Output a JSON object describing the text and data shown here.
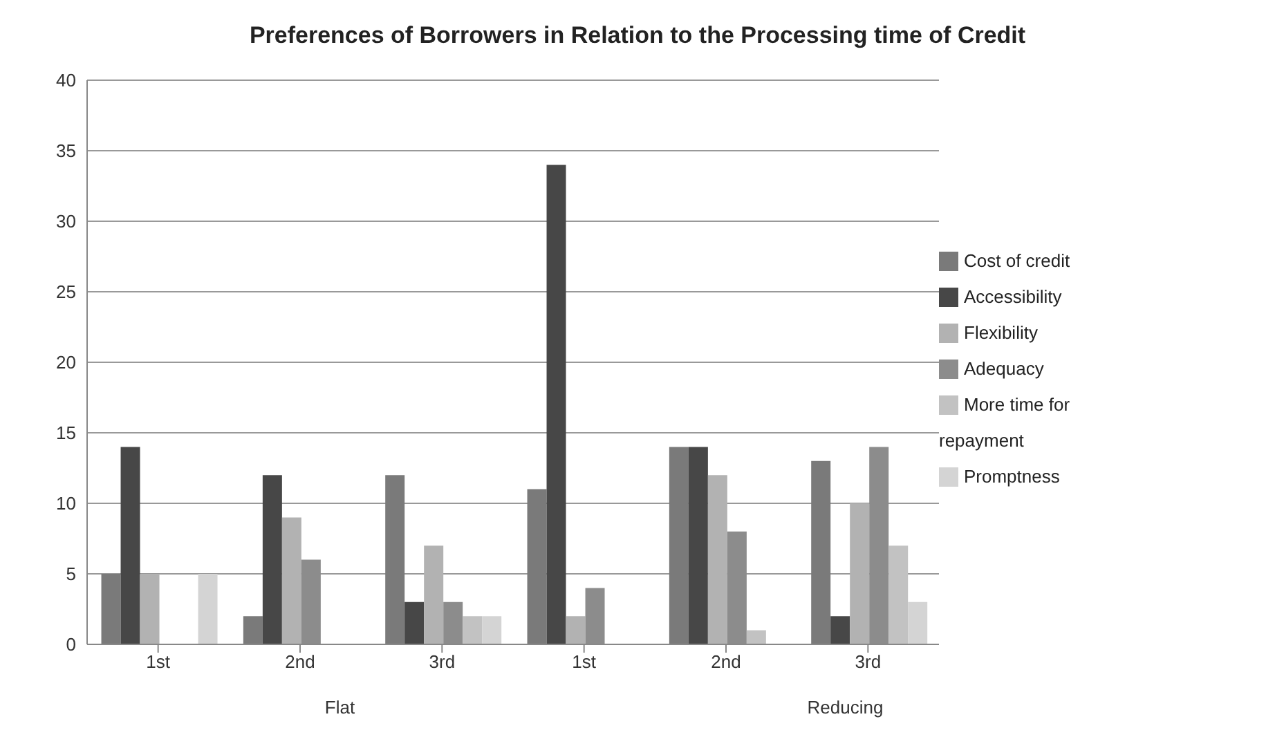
{
  "chart_data": {
    "type": "bar",
    "title": "Preferences of Borrowers in Relation to the Processing time of Credit",
    "categories": [
      "1st",
      "2nd",
      "3rd",
      "1st",
      "2nd",
      "3rd"
    ],
    "series": [
      {
        "name": "Cost of credit",
        "color": "#7a7a7a",
        "values": [
          5,
          2,
          12,
          11,
          14,
          13
        ]
      },
      {
        "name": "Accessibility",
        "color": "#474747",
        "values": [
          14,
          12,
          3,
          34,
          14,
          2
        ]
      },
      {
        "name": "Flexibility",
        "color": "#b2b2b2",
        "values": [
          5,
          9,
          7,
          2,
          12,
          10
        ]
      },
      {
        "name": "Adequacy",
        "color": "#8c8c8c",
        "values": [
          0,
          6,
          3,
          4,
          8,
          14
        ]
      },
      {
        "name": "More time for repayment",
        "color": "#c2c2c2",
        "values": [
          0,
          0,
          2,
          0,
          1,
          7
        ]
      },
      {
        "name": "Promptness",
        "color": "#d4d4d4",
        "values": [
          5,
          0,
          2,
          0,
          0,
          3
        ]
      }
    ],
    "annotations": [
      "Flat",
      "Reducing"
    ],
    "ylim": [
      0,
      40
    ],
    "yticks": [
      0,
      5,
      10,
      15,
      20,
      25,
      30,
      35,
      40
    ],
    "grid": "y",
    "legend": "right"
  }
}
